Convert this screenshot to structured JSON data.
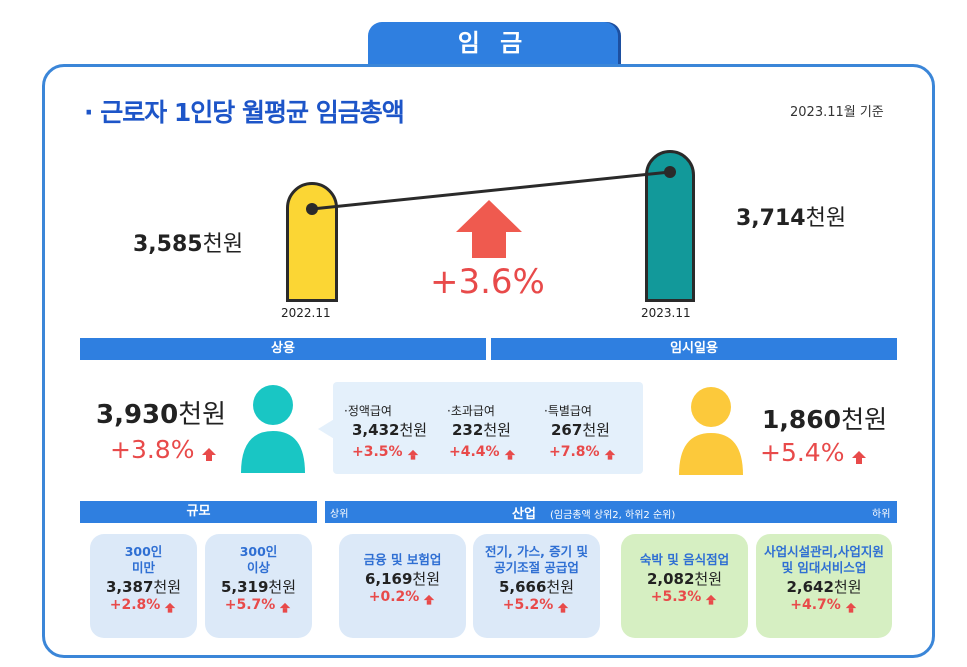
{
  "title": "임 금",
  "heading": "· 근로자 1인당 월평균 임금총액",
  "base_date": "2023.11월 기준",
  "years": {
    "prev": "2022.11",
    "curr": "2023.11"
  },
  "totals": {
    "prev_value": "3,585",
    "curr_value": "3,714",
    "unit": "천원",
    "change": "+3.6%"
  },
  "regular": {
    "label": "상용",
    "value": "3,930",
    "unit": "천원",
    "change": "+3.8%",
    "breakdown": [
      {
        "label": "·정액급여",
        "value": "3,432",
        "unit": "천원",
        "change": "+3.5%"
      },
      {
        "label": "·초과급여",
        "value": "232",
        "unit": "천원",
        "change": "+4.4%"
      },
      {
        "label": "·특별급여",
        "value": "267",
        "unit": "천원",
        "change": "+7.8%"
      }
    ]
  },
  "temporary": {
    "label": "임시일용",
    "value": "1,860",
    "unit": "천원",
    "change": "+5.4%"
  },
  "size": {
    "label": "규모",
    "cards": [
      {
        "line1": "300인",
        "line2": "미만",
        "value": "3,387",
        "unit": "천원",
        "change": "+2.8%"
      },
      {
        "line1": "300인",
        "line2": "이상",
        "value": "5,319",
        "unit": "천원",
        "change": "+5.7%"
      }
    ]
  },
  "industry": {
    "label": "산업",
    "note": "(임금총액 상위2, 하위2 순위)",
    "top_label": "상위",
    "bottom_label": "하위",
    "cards": [
      {
        "line1": "금융 및 보험업",
        "line2": "",
        "value": "6,169",
        "unit": "천원",
        "change": "+0.2%"
      },
      {
        "line1": "전기, 가스, 증기 및",
        "line2": "공기조절 공급업",
        "value": "5,666",
        "unit": "천원",
        "change": "+5.2%"
      },
      {
        "line1": "숙박 및 음식점업",
        "line2": "",
        "value": "2,082",
        "unit": "천원",
        "change": "+5.3%"
      },
      {
        "line1": "사업시설관리,사업지원",
        "line2": "및 임대서비스업",
        "value": "2,642",
        "unit": "천원",
        "change": "+4.7%"
      }
    ]
  }
}
